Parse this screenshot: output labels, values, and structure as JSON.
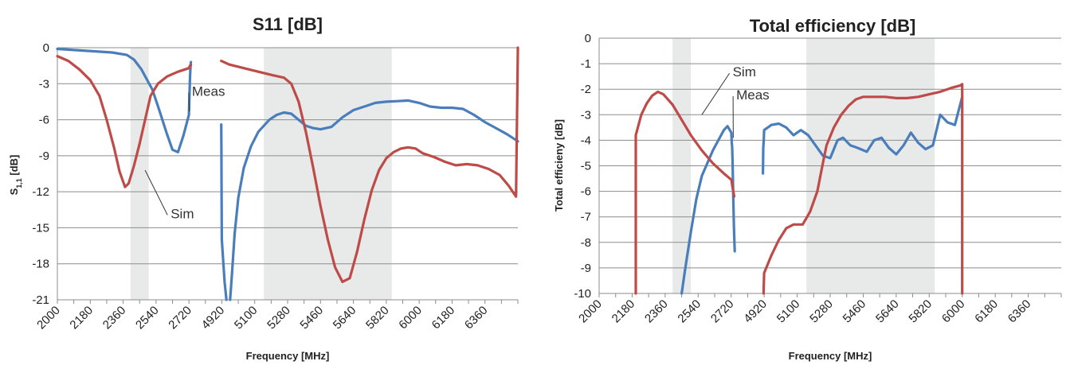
{
  "chart_data": [
    {
      "type": "line",
      "title": "S11 [dB]",
      "xlabel": "Frequency [MHz]",
      "ylabel": "S",
      "ylabel_sub": "1,1",
      "ylabel_tail": " [dB]",
      "ylim": [
        -21,
        0
      ],
      "xlim": [
        2000,
        6540
      ],
      "y_ticks": [
        0,
        -3,
        -6,
        -9,
        -12,
        -15,
        -18,
        -21
      ],
      "y_tick_labels": [
        "0",
        "-3",
        "-6",
        "-9",
        "-12",
        "-15",
        "-18",
        "-21"
      ],
      "x_ticks": [
        2000,
        2180,
        2360,
        2540,
        2720,
        4920,
        5100,
        5280,
        5460,
        5640,
        5820,
        6000,
        6180,
        6360
      ],
      "x_tick_labels": [
        "2000",
        "2180",
        "2360",
        "2540",
        "2720",
        "4920",
        "5100",
        "5280",
        "5460",
        "5640",
        "5820",
        "6000",
        "6180",
        "6360"
      ],
      "grid": true,
      "shaded_bands": [
        [
          2400,
          2500
        ],
        [
          5150,
          5850
        ]
      ],
      "annotations": [
        {
          "text": "Meas",
          "x": 2920,
          "y": -4.0,
          "to_x": 2740,
          "to_y": -5.3
        },
        {
          "text": "Sim",
          "x": 2620,
          "y": -14.2,
          "to_x": 2480,
          "to_y": -10.2
        }
      ],
      "series": [
        {
          "name": "Meas",
          "color": "#4a7ebb",
          "segments": [
            [
              [
                2000,
                -0.1
              ],
              [
                2100,
                -0.2
              ],
              [
                2200,
                -0.3
              ],
              [
                2300,
                -0.4
              ],
              [
                2380,
                -0.6
              ],
              [
                2420,
                -1.0
              ],
              [
                2460,
                -1.8
              ],
              [
                2520,
                -3.5
              ],
              [
                2560,
                -5.3
              ],
              [
                2600,
                -7.2
              ],
              [
                2630,
                -8.5
              ],
              [
                2660,
                -8.7
              ],
              [
                2690,
                -7.3
              ],
              [
                2720,
                -5.6
              ],
              [
                2760,
                -3.8
              ],
              [
                2800,
                -2.3
              ],
              [
                2830,
                -1.5
              ],
              [
                2850,
                -1.2
              ]
            ],
            [
              [
                4880,
                -6.4
              ],
              [
                4890,
                -8.5
              ],
              [
                4905,
                -12.0
              ],
              [
                4920,
                -16.0
              ],
              [
                4935,
                -19.5
              ],
              [
                4945,
                -21.0
              ]
            ],
            [
              [
                4965,
                -21.0
              ],
              [
                4975,
                -19.0
              ],
              [
                4990,
                -15.5
              ],
              [
                5010,
                -12.5
              ],
              [
                5040,
                -10.0
              ],
              [
                5080,
                -8.2
              ],
              [
                5120,
                -7.0
              ],
              [
                5180,
                -6.0
              ],
              [
                5220,
                -5.6
              ],
              [
                5260,
                -5.4
              ],
              [
                5300,
                -5.5
              ],
              [
                5340,
                -6.0
              ],
              [
                5380,
                -6.5
              ],
              [
                5420,
                -6.7
              ],
              [
                5460,
                -6.8
              ],
              [
                5520,
                -6.6
              ],
              [
                5580,
                -5.8
              ],
              [
                5640,
                -5.2
              ],
              [
                5700,
                -4.9
              ],
              [
                5760,
                -4.6
              ],
              [
                5820,
                -4.5
              ],
              [
                5880,
                -4.45
              ],
              [
                5940,
                -4.4
              ],
              [
                6000,
                -4.6
              ],
              [
                6060,
                -4.9
              ],
              [
                6120,
                -5.0
              ],
              [
                6180,
                -5.0
              ],
              [
                6240,
                -5.1
              ],
              [
                6300,
                -5.6
              ],
              [
                6360,
                -6.2
              ],
              [
                6420,
                -6.7
              ],
              [
                6480,
                -7.2
              ],
              [
                6540,
                -7.8
              ]
            ]
          ]
        },
        {
          "name": "Sim",
          "color": "#be4b48",
          "segments": [
            [
              [
                2000,
                -0.7
              ],
              [
                2060,
                -1.1
              ],
              [
                2120,
                -1.8
              ],
              [
                2180,
                -2.7
              ],
              [
                2230,
                -4.0
              ],
              [
                2270,
                -6.0
              ],
              [
                2310,
                -8.3
              ],
              [
                2340,
                -10.3
              ],
              [
                2370,
                -11.6
              ],
              [
                2390,
                -11.3
              ],
              [
                2420,
                -9.8
              ],
              [
                2450,
                -8.0
              ],
              [
                2480,
                -6.0
              ],
              [
                2510,
                -4.0
              ],
              [
                2550,
                -3.0
              ],
              [
                2600,
                -2.4
              ],
              [
                2660,
                -2.0
              ],
              [
                2720,
                -1.7
              ],
              [
                2790,
                -1.5
              ],
              [
                2850,
                -1.45
              ]
            ],
            [
              [
                4880,
                -1.1
              ],
              [
                4960,
                -1.4
              ],
              [
                5040,
                -1.7
              ],
              [
                5120,
                -2.0
              ],
              [
                5200,
                -2.3
              ],
              [
                5260,
                -2.5
              ],
              [
                5300,
                -3.0
              ],
              [
                5340,
                -4.5
              ],
              [
                5380,
                -7.0
              ],
              [
                5420,
                -10.0
              ],
              [
                5460,
                -13.2
              ],
              [
                5500,
                -16.0
              ],
              [
                5540,
                -18.3
              ],
              [
                5580,
                -19.5
              ],
              [
                5620,
                -19.2
              ],
              [
                5660,
                -17.0
              ],
              [
                5700,
                -14.3
              ],
              [
                5740,
                -11.9
              ],
              [
                5780,
                -10.2
              ],
              [
                5820,
                -9.2
              ],
              [
                5860,
                -8.7
              ],
              [
                5900,
                -8.4
              ],
              [
                5940,
                -8.3
              ],
              [
                5980,
                -8.4
              ],
              [
                6020,
                -8.8
              ],
              [
                6080,
                -9.1
              ],
              [
                6140,
                -9.5
              ],
              [
                6200,
                -9.8
              ],
              [
                6260,
                -9.7
              ],
              [
                6320,
                -9.8
              ],
              [
                6380,
                -10.1
              ],
              [
                6440,
                -10.6
              ],
              [
                6490,
                -11.5
              ],
              [
                6530,
                -12.4
              ],
              [
                6540,
                0
              ]
            ]
          ]
        }
      ]
    },
    {
      "type": "line",
      "title": "Total efficiency [dB]",
      "xlabel": "Frequency [MHz]",
      "ylabel": "Total efficieny [dB]",
      "ylim": [
        -10,
        0
      ],
      "xlim": [
        2000,
        6540
      ],
      "y_ticks": [
        0,
        -1,
        -2,
        -3,
        -4,
        -5,
        -6,
        -7,
        -8,
        -9,
        -10
      ],
      "y_tick_labels": [
        "0",
        "-1",
        "-2",
        "-3",
        "-4",
        "-5",
        "-6",
        "-7",
        "-8",
        "-9",
        "-10"
      ],
      "x_ticks": [
        2000,
        2180,
        2360,
        2540,
        2720,
        4920,
        5100,
        5280,
        5460,
        5640,
        5820,
        6000,
        6180,
        6360
      ],
      "x_tick_labels": [
        "2000",
        "2180",
        "2360",
        "2540",
        "2720",
        "4920",
        "5100",
        "5280",
        "5460",
        "5640",
        "5820",
        "6000",
        "6180",
        "6360"
      ],
      "grid": true,
      "shaded_bands": [
        [
          2400,
          2500
        ],
        [
          5150,
          5850
        ]
      ],
      "annotations": [
        {
          "text": "Sim",
          "x": 2820,
          "y": -1.5,
          "to_x": 2560,
          "to_y": -3.0
        },
        {
          "text": "Meas",
          "x": 3060,
          "y": -2.4,
          "to_x": 2860,
          "to_y": -3.9
        }
      ],
      "series": [
        {
          "name": "Meas",
          "color": "#4a7ebb",
          "segments": [
            [
              [
                2450,
                -10.0
              ],
              [
                2470,
                -9.0
              ],
              [
                2500,
                -7.6
              ],
              [
                2530,
                -6.3
              ],
              [
                2560,
                -5.4
              ],
              [
                2590,
                -4.9
              ],
              [
                2620,
                -4.4
              ],
              [
                2650,
                -4.0
              ],
              [
                2680,
                -3.6
              ],
              [
                2700,
                -3.45
              ],
              [
                2730,
                -3.7
              ],
              [
                2760,
                -4.1
              ],
              [
                2790,
                -4.3
              ],
              [
                2820,
                -5.0
              ],
              [
                2850,
                -6.0
              ],
              [
                2880,
                -6.7
              ],
              [
                2900,
                -7.3
              ],
              [
                2930,
                -7.9
              ],
              [
                2960,
                -8.35
              ]
            ],
            [
              [
                4840,
                -5.3
              ],
              [
                4860,
                -4.3
              ],
              [
                4890,
                -4.0
              ],
              [
                4920,
                -3.6
              ],
              [
                4960,
                -3.4
              ],
              [
                5000,
                -3.35
              ],
              [
                5040,
                -3.5
              ],
              [
                5080,
                -3.8
              ],
              [
                5120,
                -3.6
              ],
              [
                5160,
                -3.8
              ],
              [
                5200,
                -4.2
              ],
              [
                5240,
                -4.6
              ],
              [
                5280,
                -4.7
              ],
              [
                5320,
                -4.0
              ],
              [
                5350,
                -3.9
              ],
              [
                5390,
                -4.2
              ],
              [
                5430,
                -4.3
              ],
              [
                5480,
                -4.45
              ],
              [
                5520,
                -4.0
              ],
              [
                5560,
                -3.9
              ],
              [
                5600,
                -4.3
              ],
              [
                5640,
                -4.55
              ],
              [
                5680,
                -4.2
              ],
              [
                5720,
                -3.7
              ],
              [
                5760,
                -4.1
              ],
              [
                5800,
                -4.35
              ],
              [
                5840,
                -4.2
              ],
              [
                5880,
                -3.0
              ],
              [
                5920,
                -3.3
              ],
              [
                5960,
                -3.4
              ],
              [
                6000,
                -2.3
              ]
            ]
          ]
        },
        {
          "name": "Sim",
          "color": "#be4b48",
          "segments": [
            [
              [
                2200,
                -10.0
              ],
              [
                2200,
                -3.8
              ],
              [
                2230,
                -3.0
              ],
              [
                2260,
                -2.55
              ],
              [
                2290,
                -2.25
              ],
              [
                2320,
                -2.1
              ],
              [
                2350,
                -2.2
              ],
              [
                2400,
                -2.6
              ],
              [
                2450,
                -3.2
              ],
              [
                2500,
                -3.8
              ],
              [
                2560,
                -4.4
              ],
              [
                2620,
                -4.9
              ],
              [
                2680,
                -5.3
              ],
              [
                2740,
                -5.55
              ],
              [
                2800,
                -5.8
              ],
              [
                2860,
                -6.0
              ],
              [
                2920,
                -6.2
              ]
            ],
            [
              [
                4880,
                -10.0
              ],
              [
                4920,
                -9.2
              ],
              [
                4960,
                -8.5
              ],
              [
                5000,
                -7.9
              ],
              [
                5040,
                -7.45
              ],
              [
                5080,
                -7.3
              ],
              [
                5130,
                -7.3
              ],
              [
                5170,
                -6.8
              ],
              [
                5210,
                -6.0
              ],
              [
                5240,
                -4.9
              ],
              [
                5260,
                -4.2
              ],
              [
                5300,
                -3.5
              ],
              [
                5340,
                -3.0
              ],
              [
                5380,
                -2.65
              ],
              [
                5420,
                -2.4
              ],
              [
                5460,
                -2.3
              ],
              [
                5520,
                -2.3
              ],
              [
                5580,
                -2.3
              ],
              [
                5640,
                -2.35
              ],
              [
                5700,
                -2.35
              ],
              [
                5760,
                -2.3
              ],
              [
                5820,
                -2.2
              ],
              [
                5880,
                -2.1
              ],
              [
                5940,
                -1.95
              ],
              [
                5990,
                -1.85
              ],
              [
                6000,
                -1.8
              ],
              [
                6000,
                -10.0
              ]
            ]
          ]
        }
      ]
    }
  ]
}
